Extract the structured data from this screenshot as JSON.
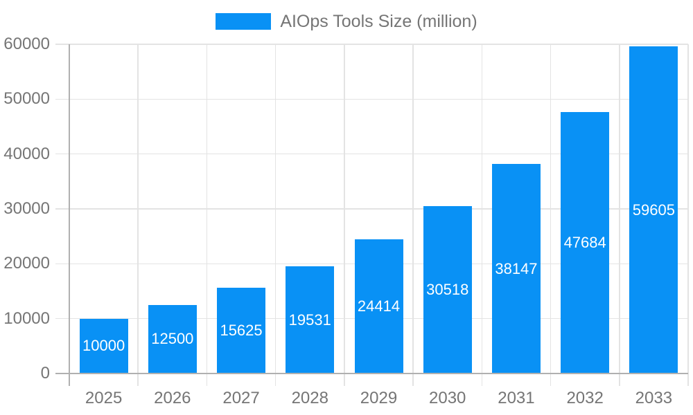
{
  "chart_data": {
    "type": "bar",
    "legend": "AIOps Tools Size (million)",
    "legend_position": "top-center",
    "categories": [
      "2025",
      "2026",
      "2027",
      "2028",
      "2029",
      "2030",
      "2031",
      "2032",
      "2033"
    ],
    "values": [
      10000,
      12500,
      15625,
      19531,
      24414,
      30518,
      38147,
      47684,
      59605
    ],
    "bar_value_labels": [
      "10000",
      "12500",
      "15625",
      "19531",
      "24414",
      "30518",
      "38147",
      "47684",
      "59605"
    ],
    "xlabel": "",
    "ylabel": "",
    "ylim": [
      0,
      60000
    ],
    "ytick_step": 10000,
    "yticks": [
      0,
      10000,
      20000,
      30000,
      40000,
      50000,
      60000
    ],
    "grid": "on",
    "colors": {
      "bar": "#0991f5",
      "gridline": "#e3e3e3",
      "axis_line": "#b0b0b0",
      "axis_text": "#757575",
      "bar_value_text": "#ffffff",
      "background": "#ffffff"
    }
  }
}
